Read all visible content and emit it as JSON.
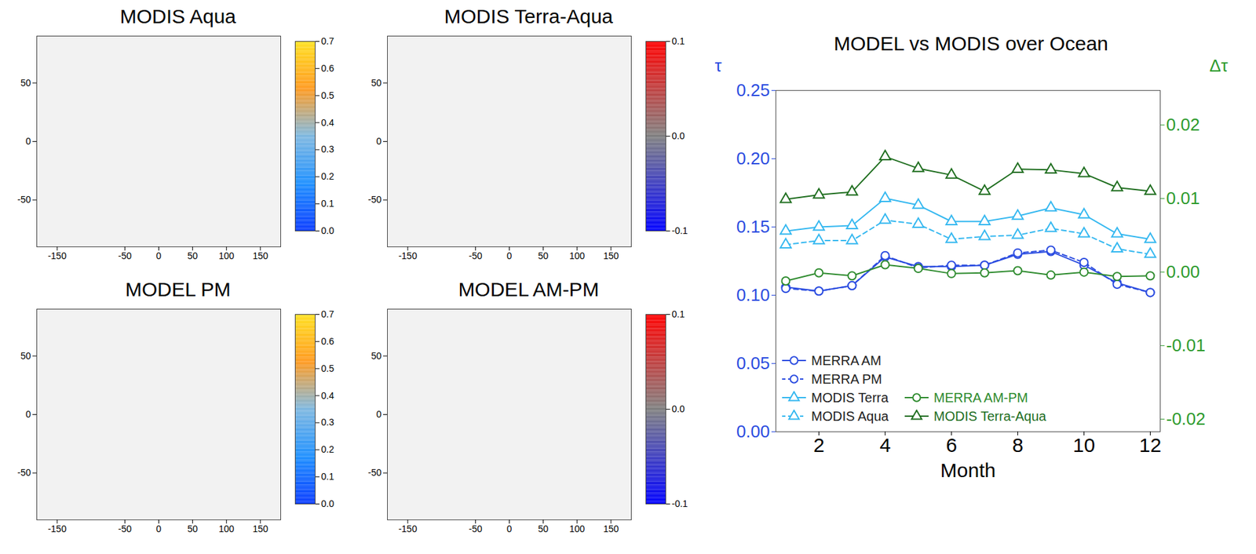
{
  "chart_data": [
    {
      "type": "map",
      "title": "MODIS Aqua",
      "xlim": [
        -180,
        180
      ],
      "xticks": [
        -150,
        -50,
        0,
        50,
        100,
        150
      ],
      "ylim": [
        -90,
        90
      ],
      "yticks": [
        -50,
        0,
        50
      ],
      "colorbar": {
        "range": [
          0,
          0.7
        ],
        "ticks": [
          {
            "value": 0,
            "label": "0.0"
          },
          0.1,
          0.2,
          0.3,
          0.4,
          0.5,
          0.6,
          0.7
        ],
        "colors": [
          "#0a3cff",
          "#1e90ff",
          "#7fb8e0",
          "#ff9a20",
          "#ffe020"
        ]
      }
    },
    {
      "type": "map",
      "title": "MODIS Terra-Aqua",
      "xlim": [
        -180,
        180
      ],
      "xticks": [
        -150,
        -50,
        0,
        50,
        100,
        150
      ],
      "ylim": [
        -90,
        90
      ],
      "yticks": [
        -50,
        0,
        50
      ],
      "colorbar": {
        "range": [
          -0.1,
          0.1
        ],
        "ticks": [
          -0.1,
          {
            "value": 0,
            "label": "0.0"
          },
          0.1
        ],
        "colors": [
          "#0000ff",
          "#808080",
          "#ff0000"
        ]
      }
    },
    {
      "type": "map",
      "title": "MODEL PM",
      "xlim": [
        -180,
        180
      ],
      "xticks": [
        -150,
        -50,
        0,
        50,
        100,
        150
      ],
      "ylim": [
        -90,
        90
      ],
      "yticks": [
        -50,
        0,
        50
      ],
      "colorbar": {
        "range": [
          0,
          0.7
        ],
        "ticks": [
          {
            "value": 0,
            "label": "0.0"
          },
          0.1,
          0.2,
          0.3,
          0.4,
          0.5,
          0.6,
          0.7
        ],
        "colors": [
          "#0a3cff",
          "#1e90ff",
          "#7fb8e0",
          "#ff9a20",
          "#ffe020"
        ]
      }
    },
    {
      "type": "map",
      "title": "MODEL AM-PM",
      "xlim": [
        -180,
        180
      ],
      "xticks": [
        -150,
        -50,
        0,
        50,
        100,
        150
      ],
      "ylim": [
        -90,
        90
      ],
      "yticks": [
        -50,
        0,
        50
      ],
      "colorbar": {
        "range": [
          -0.1,
          0.1
        ],
        "ticks": [
          -0.1,
          {
            "value": 0,
            "label": "0.0"
          },
          0.1
        ],
        "colors": [
          "#0000ff",
          "#808080",
          "#ff0000"
        ]
      }
    },
    {
      "type": "line",
      "title": "MODEL vs MODIS over Ocean",
      "x_label": "Month",
      "y_label": "τ",
      "y2_label": "Δτ",
      "x": [
        1,
        2,
        3,
        4,
        5,
        6,
        7,
        8,
        9,
        10,
        11,
        12
      ],
      "xlim": [
        0.7,
        12.3
      ],
      "xticks": [
        2,
        4,
        6,
        8,
        10,
        12
      ],
      "ylim": [
        0,
        0.25
      ],
      "yticks": [
        {
          "value": 0,
          "label": "0.00"
        },
        0.05,
        {
          "value": 0.1,
          "label": "0.10"
        },
        0.15,
        {
          "value": 0.2,
          "label": "0.20"
        },
        0.25
      ],
      "y2lim": [
        -0.0217,
        0.0247
      ],
      "y2ticks": [
        -0.02,
        -0.01,
        {
          "value": 0,
          "label": "0.00"
        },
        0.01,
        0.02
      ],
      "legend": "lower left",
      "series": [
        {
          "name": "MERRA AM",
          "color": "#2b4ce0",
          "marker": "circle",
          "line_style": "solid",
          "values": [
            0.106,
            0.103,
            0.107,
            0.128,
            0.121,
            0.121,
            0.122,
            0.13,
            0.132,
            0.122,
            0.109,
            0.102
          ]
        },
        {
          "name": "MERRA PM",
          "color": "#2b4ce0",
          "marker": "circle",
          "line_style": "dashed",
          "values": [
            0.105,
            0.103,
            0.107,
            0.129,
            0.12,
            0.122,
            0.122,
            0.131,
            0.133,
            0.124,
            0.108,
            0.102
          ]
        },
        {
          "name": "MODIS Terra",
          "color": "#35b8f0",
          "marker": "triangle",
          "line_style": "solid",
          "values": [
            0.147,
            0.15,
            0.151,
            0.171,
            0.166,
            0.154,
            0.154,
            0.158,
            0.164,
            0.159,
            0.145,
            0.141
          ]
        },
        {
          "name": "MODIS Aqua",
          "color": "#35b8f0",
          "marker": "triangle",
          "line_style": "dashed",
          "values": [
            0.137,
            0.14,
            0.14,
            0.155,
            0.152,
            0.141,
            0.143,
            0.144,
            0.149,
            0.145,
            0.134,
            0.13
          ]
        },
        {
          "name": "MERRA AM-PM",
          "color": "#2e8b2e",
          "marker": "circle",
          "line_style": "solid",
          "axis": "y2",
          "values": [
            -0.0012,
            -0.0001,
            -0.0005,
            0.001,
            0.0005,
            -0.0002,
            -0.0001,
            0.0002,
            -0.0004,
            0.0,
            -0.0006,
            -0.0005
          ]
        },
        {
          "name": "MODIS Terra-Aqua",
          "color": "#1f6e1f",
          "marker": "triangle",
          "line_style": "solid",
          "axis": "y2",
          "values": [
            0.0099,
            0.0105,
            0.0109,
            0.0157,
            0.0141,
            0.0132,
            0.011,
            0.014,
            0.0139,
            0.0134,
            0.0115,
            0.011
          ]
        }
      ]
    }
  ]
}
